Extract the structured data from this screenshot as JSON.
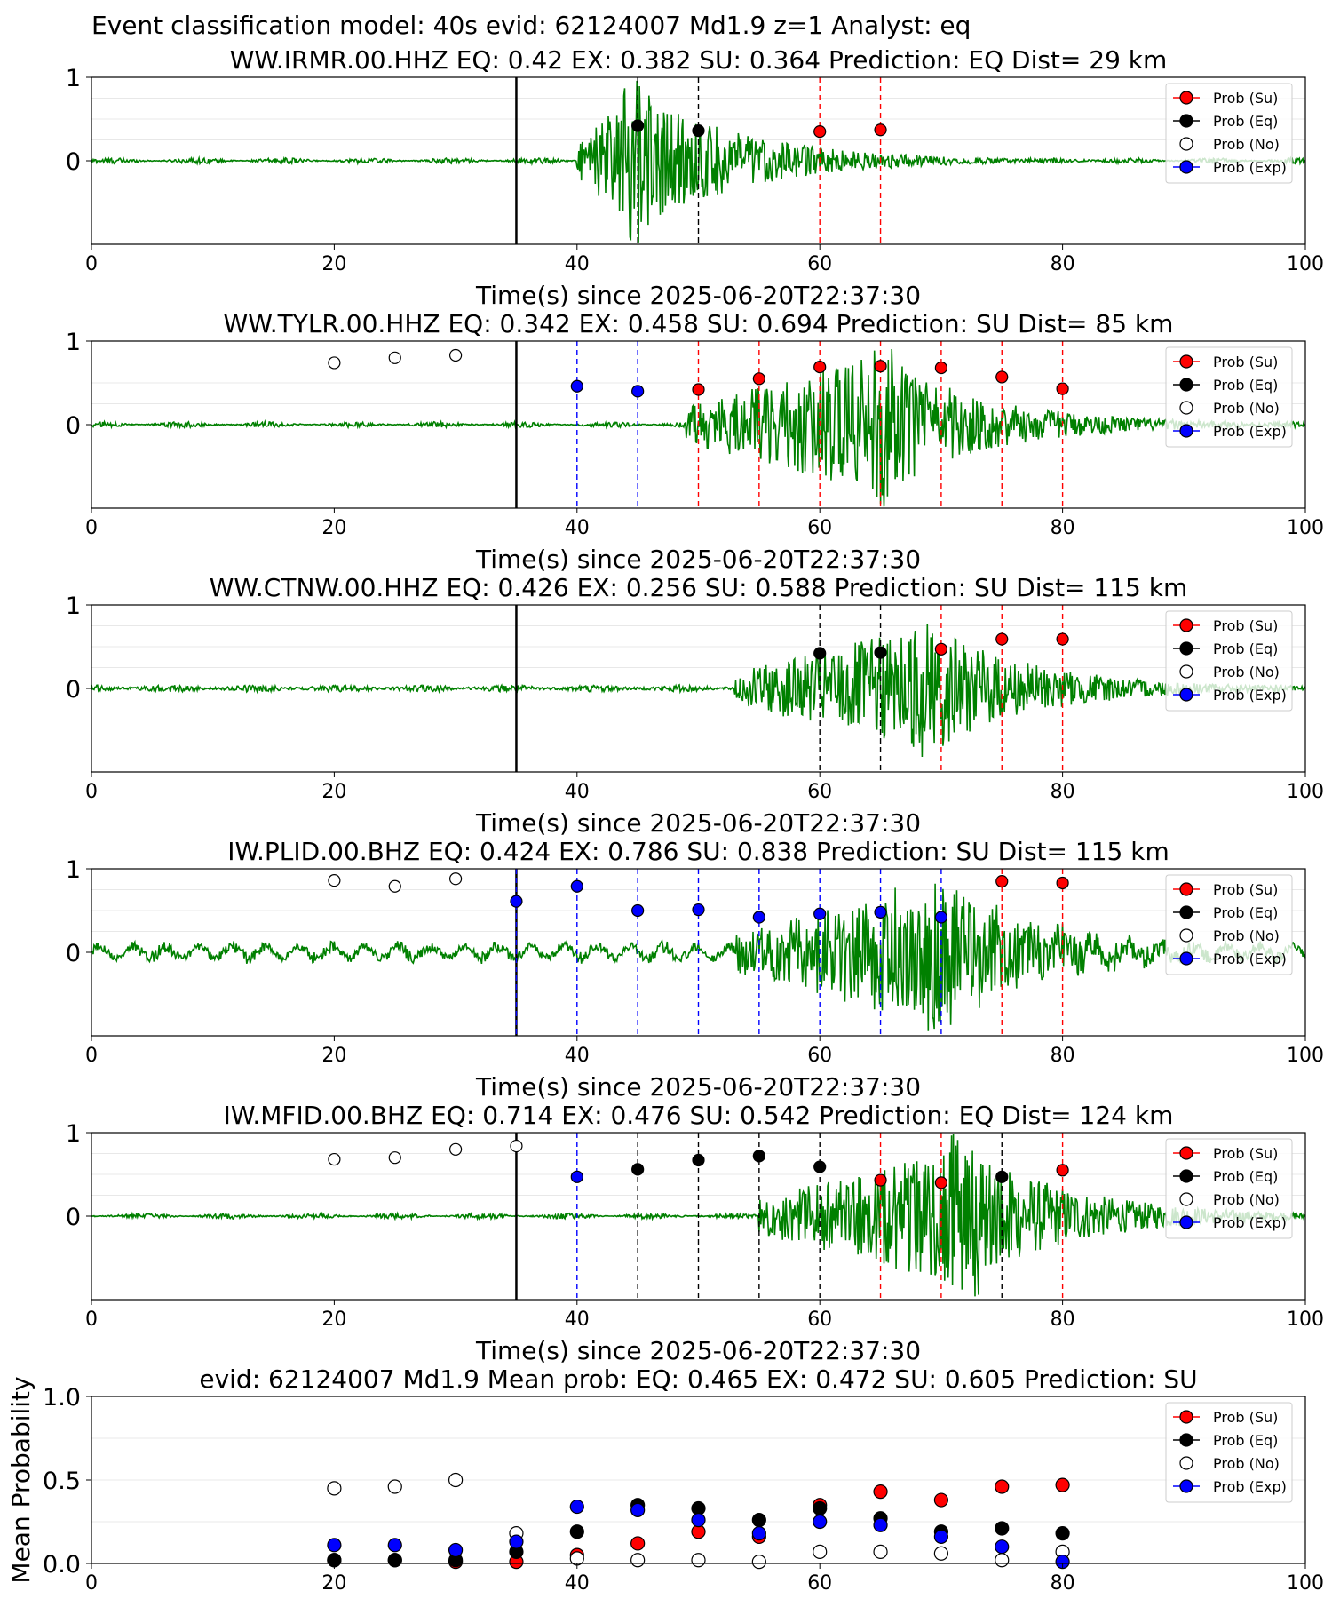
{
  "suptitle": "Event classification model: 40s evid: 62124007 Md1.9 z=1 Analyst: eq",
  "legend": [
    "Prob (Su)",
    "Prob (Eq)",
    "Prob (No)",
    "Prob (Exp)"
  ],
  "colors": {
    "su": "#ff0000",
    "eq": "#000000",
    "no": "#ffffff",
    "exp": "#0000ff",
    "trace": "#008000",
    "dashed_su": "#ff0000",
    "dashed_eq": "#000000",
    "dashed_exp": "#0000ff"
  },
  "chart_data": [
    {
      "type": "line",
      "title": "WW.IRMR.00.HHZ   EQ: 0.42  EX: 0.382  SU: 0.364    Prediction: EQ     Dist= 29 km",
      "xlabel": "Time(s) since 2025-06-20T22:37:30",
      "xlim": [
        0,
        100
      ],
      "xticks": [
        "0",
        "20",
        "40",
        "60",
        "80",
        "100"
      ],
      "yticks": [
        "1",
        "0"
      ],
      "window_start_line": 35,
      "waveform": {
        "onset": 40,
        "peak": 45,
        "peak_amp": 1.0,
        "noise": 0.02,
        "coda_end": 100
      },
      "points": [
        {
          "x": 45,
          "y": 0.42,
          "cls": "eq"
        },
        {
          "x": 50,
          "y": 0.36,
          "cls": "eq"
        },
        {
          "x": 60,
          "y": 0.35,
          "cls": "su"
        },
        {
          "x": 65,
          "y": 0.37,
          "cls": "su"
        }
      ]
    },
    {
      "type": "line",
      "title": "WW.TYLR.00.HHZ   EQ: 0.342  EX: 0.458  SU: 0.694    Prediction: SU     Dist= 85 km",
      "xlabel": "Time(s) since 2025-06-20T22:37:30",
      "xlim": [
        0,
        100
      ],
      "xticks": [
        "0",
        "20",
        "40",
        "60",
        "80",
        "100"
      ],
      "yticks": [
        "1",
        "0"
      ],
      "window_start_line": 35,
      "waveform": {
        "onset": 49,
        "peak": 65,
        "peak_amp": 1.0,
        "noise": 0.02,
        "coda_end": 100
      },
      "points": [
        {
          "x": 20,
          "y": 0.74,
          "cls": "no"
        },
        {
          "x": 25,
          "y": 0.8,
          "cls": "no"
        },
        {
          "x": 30,
          "y": 0.83,
          "cls": "no"
        },
        {
          "x": 40,
          "y": 0.46,
          "cls": "exp"
        },
        {
          "x": 45,
          "y": 0.4,
          "cls": "exp"
        },
        {
          "x": 50,
          "y": 0.42,
          "cls": "su"
        },
        {
          "x": 55,
          "y": 0.55,
          "cls": "su"
        },
        {
          "x": 60,
          "y": 0.69,
          "cls": "su"
        },
        {
          "x": 65,
          "y": 0.7,
          "cls": "su"
        },
        {
          "x": 70,
          "y": 0.68,
          "cls": "su"
        },
        {
          "x": 75,
          "y": 0.57,
          "cls": "su"
        },
        {
          "x": 80,
          "y": 0.43,
          "cls": "su"
        }
      ]
    },
    {
      "type": "line",
      "title": "WW.CTNW.00.HHZ   EQ: 0.426  EX: 0.256  SU: 0.588    Prediction: SU     Dist= 115 km",
      "xlabel": "Time(s) since 2025-06-20T22:37:30",
      "xlim": [
        0,
        100
      ],
      "xticks": [
        "0",
        "20",
        "40",
        "60",
        "80",
        "100"
      ],
      "yticks": [
        "1",
        "0"
      ],
      "window_start_line": 35,
      "waveform": {
        "onset": 53,
        "peak": 69,
        "peak_amp": 0.9,
        "noise": 0.03,
        "coda_end": 100
      },
      "points": [
        {
          "x": 60,
          "y": 0.42,
          "cls": "eq"
        },
        {
          "x": 65,
          "y": 0.43,
          "cls": "eq"
        },
        {
          "x": 70,
          "y": 0.47,
          "cls": "su"
        },
        {
          "x": 75,
          "y": 0.59,
          "cls": "su"
        },
        {
          "x": 80,
          "y": 0.59,
          "cls": "su"
        }
      ]
    },
    {
      "type": "line",
      "title": "IW.PLID.00.BHZ   EQ: 0.424  EX: 0.786  SU: 0.838    Prediction: SU    Dist= 115 km",
      "xlabel": "Time(s) since 2025-06-20T22:37:30",
      "xlim": [
        0,
        100
      ],
      "xticks": [
        "0",
        "20",
        "40",
        "60",
        "80",
        "100"
      ],
      "yticks": [
        "1",
        "0"
      ],
      "window_start_line": 35,
      "waveform": {
        "onset": 53,
        "peak": 70,
        "peak_amp": 1.0,
        "noise": 0.06,
        "coda_end": 100
      },
      "points": [
        {
          "x": 20,
          "y": 0.86,
          "cls": "no"
        },
        {
          "x": 25,
          "y": 0.79,
          "cls": "no"
        },
        {
          "x": 30,
          "y": 0.88,
          "cls": "no"
        },
        {
          "x": 35,
          "y": 0.61,
          "cls": "exp"
        },
        {
          "x": 40,
          "y": 0.79,
          "cls": "exp"
        },
        {
          "x": 45,
          "y": 0.5,
          "cls": "exp"
        },
        {
          "x": 50,
          "y": 0.51,
          "cls": "exp"
        },
        {
          "x": 55,
          "y": 0.42,
          "cls": "exp"
        },
        {
          "x": 60,
          "y": 0.46,
          "cls": "exp"
        },
        {
          "x": 65,
          "y": 0.48,
          "cls": "exp"
        },
        {
          "x": 70,
          "y": 0.42,
          "cls": "exp"
        },
        {
          "x": 75,
          "y": 0.85,
          "cls": "su"
        },
        {
          "x": 80,
          "y": 0.83,
          "cls": "su"
        }
      ]
    },
    {
      "type": "line",
      "title": "IW.MFID.00.BHZ   EQ: 0.714  EX: 0.476  SU: 0.542    Prediction: EQ     Dist= 124 km",
      "xlabel": "Time(s) since 2025-06-20T22:37:30",
      "xlim": [
        0,
        100
      ],
      "xticks": [
        "0",
        "20",
        "40",
        "60",
        "80",
        "100"
      ],
      "yticks": [
        "1",
        "0"
      ],
      "window_start_line": 35,
      "waveform": {
        "onset": 55,
        "peak": 72,
        "peak_amp": 1.0,
        "noise": 0.02,
        "coda_end": 100
      },
      "points": [
        {
          "x": 20,
          "y": 0.68,
          "cls": "no"
        },
        {
          "x": 25,
          "y": 0.7,
          "cls": "no"
        },
        {
          "x": 30,
          "y": 0.8,
          "cls": "no"
        },
        {
          "x": 35,
          "y": 0.84,
          "cls": "no"
        },
        {
          "x": 40,
          "y": 0.47,
          "cls": "exp"
        },
        {
          "x": 45,
          "y": 0.56,
          "cls": "eq"
        },
        {
          "x": 50,
          "y": 0.67,
          "cls": "eq"
        },
        {
          "x": 55,
          "y": 0.72,
          "cls": "eq"
        },
        {
          "x": 60,
          "y": 0.59,
          "cls": "eq"
        },
        {
          "x": 65,
          "y": 0.43,
          "cls": "su"
        },
        {
          "x": 70,
          "y": 0.4,
          "cls": "su"
        },
        {
          "x": 75,
          "y": 0.47,
          "cls": "eq"
        },
        {
          "x": 80,
          "y": 0.55,
          "cls": "su"
        }
      ]
    },
    {
      "type": "scatter",
      "title": "evid: 62124007  Md1.9   Mean prob:   EQ: 0.465  EX: 0.472  SU: 0.605   Prediction: SU",
      "ylabel": "Mean Probability",
      "xlim": [
        0,
        100
      ],
      "ylim": [
        0,
        1
      ],
      "xticks": [
        "0",
        "20",
        "40",
        "60",
        "80",
        "100"
      ],
      "yticks": [
        "1.0",
        "0.5",
        "0.0"
      ],
      "x": [
        20,
        25,
        30,
        35,
        40,
        45,
        50,
        55,
        60,
        65,
        70,
        75,
        80
      ],
      "series": [
        {
          "name": "Prob (Su)",
          "cls": "su",
          "values": [
            0.02,
            0.02,
            0.01,
            0.01,
            0.05,
            0.12,
            0.19,
            0.16,
            0.35,
            0.43,
            0.38,
            0.46,
            0.47
          ]
        },
        {
          "name": "Prob (Eq)",
          "cls": "eq",
          "values": [
            0.02,
            0.02,
            0.02,
            0.07,
            0.19,
            0.35,
            0.33,
            0.26,
            0.33,
            0.27,
            0.19,
            0.21,
            0.18
          ]
        },
        {
          "name": "Prob (No)",
          "cls": "no",
          "values": [
            0.45,
            0.46,
            0.5,
            0.18,
            0.03,
            0.02,
            0.02,
            0.01,
            0.07,
            0.07,
            0.06,
            0.02,
            0.07
          ]
        },
        {
          "name": "Prob (Exp)",
          "cls": "exp",
          "values": [
            0.11,
            0.11,
            0.08,
            0.13,
            0.34,
            0.32,
            0.26,
            0.18,
            0.25,
            0.23,
            0.16,
            0.1,
            0.01
          ]
        }
      ]
    }
  ]
}
